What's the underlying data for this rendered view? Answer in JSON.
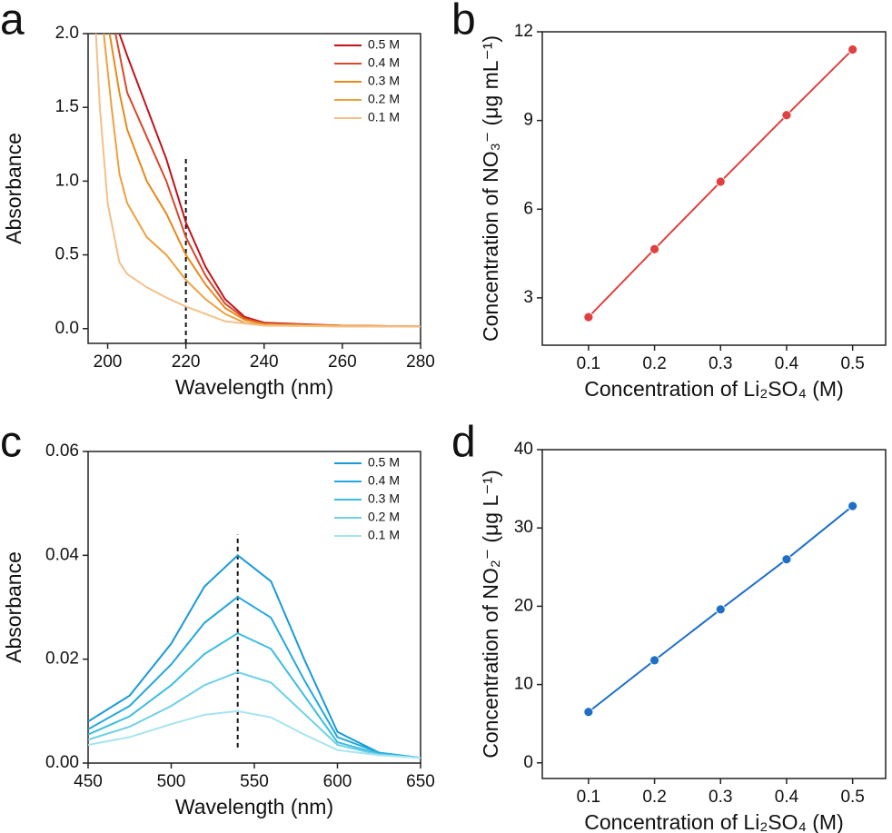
{
  "chart_data": [
    {
      "type": "line",
      "label": "a",
      "x_label": "Wavelength (nm)",
      "y_label": "Absorbance",
      "xlim": [
        195,
        280
      ],
      "ylim": [
        -0.1,
        2.0
      ],
      "xticks": [
        200,
        220,
        240,
        260,
        280
      ],
      "yticks": [
        {
          "value": 0,
          "label": "0.0"
        },
        {
          "value": 0.5,
          "label": "0.5"
        },
        {
          "value": 1,
          "label": "1.0"
        },
        {
          "value": 1.5,
          "label": "1.5"
        },
        {
          "value": 2,
          "label": "2.0"
        }
      ],
      "legend": "upper right",
      "reference_line": {
        "x": 220,
        "y": [
          -0.1,
          1.15
        ]
      },
      "series": [
        {
          "name": "0.5 M",
          "color": "#c0141c",
          "x": [
            203,
            205,
            210,
            215,
            220,
            225,
            230,
            235,
            240,
            260,
            280
          ],
          "values": [
            2.0,
            1.85,
            1.5,
            1.15,
            0.72,
            0.42,
            0.2,
            0.08,
            0.04,
            0.02,
            0.015
          ]
        },
        {
          "name": "0.4 M",
          "color": "#d9472a",
          "x": [
            202,
            205,
            210,
            215,
            220,
            225,
            230,
            235,
            240,
            260,
            280
          ],
          "values": [
            2.0,
            1.6,
            1.3,
            1.0,
            0.62,
            0.36,
            0.17,
            0.07,
            0.035,
            0.02,
            0.015
          ]
        },
        {
          "name": "0.3 M",
          "color": "#e88a1a",
          "x": [
            200.5,
            203,
            205,
            210,
            215,
            220,
            225,
            230,
            235,
            240,
            260,
            280
          ],
          "values": [
            2.0,
            1.6,
            1.35,
            1.0,
            0.78,
            0.5,
            0.3,
            0.14,
            0.06,
            0.03,
            0.02,
            0.015
          ]
        },
        {
          "name": "0.2 M",
          "color": "#eea040",
          "x": [
            199,
            201,
            203,
            205,
            210,
            215,
            220,
            225,
            230,
            235,
            240,
            260,
            280
          ],
          "values": [
            2.0,
            1.5,
            1.05,
            0.85,
            0.62,
            0.5,
            0.33,
            0.2,
            0.1,
            0.04,
            0.025,
            0.015,
            0.015
          ]
        },
        {
          "name": "0.1 M",
          "color": "#f3c08a",
          "x": [
            197,
            198,
            200,
            203,
            205,
            210,
            215,
            220,
            225,
            230,
            240,
            260,
            280
          ],
          "values": [
            2.0,
            1.5,
            0.85,
            0.45,
            0.37,
            0.28,
            0.21,
            0.15,
            0.1,
            0.05,
            0.02,
            0.015,
            0.015
          ]
        }
      ]
    },
    {
      "type": "scatter",
      "connect": true,
      "label": "b",
      "x_label": "Concentration of Li₂SO₄ (M)",
      "y_label": "Concentration of NO₃⁻ (μg mL⁻¹)",
      "xlim": [
        0.03,
        0.55
      ],
      "ylim": [
        1.4,
        12
      ],
      "xticks": [
        0.1,
        0.2,
        0.3,
        0.4,
        0.5
      ],
      "yticks": [
        3,
        6,
        9,
        12
      ],
      "series": [
        {
          "color": "#e04040",
          "x": [
            0.1,
            0.2,
            0.3,
            0.4,
            0.5
          ],
          "values": [
            2.35,
            4.65,
            6.93,
            9.18,
            11.4
          ]
        }
      ]
    },
    {
      "type": "line",
      "label": "c",
      "x_label": "Wavelength (nm)",
      "y_label": "Absorbance",
      "xlim": [
        450,
        650
      ],
      "ylim": [
        0,
        0.06
      ],
      "xticks": [
        450,
        500,
        550,
        600,
        650
      ],
      "yticks": [
        {
          "value": 0,
          "label": "0.00"
        },
        {
          "value": 0.02,
          "label": "0.02"
        },
        {
          "value": 0.04,
          "label": "0.04"
        },
        {
          "value": 0.06,
          "label": "0.06"
        }
      ],
      "legend": "upper right",
      "reference_line": {
        "x": 540,
        "y": [
          0.003,
          0.044
        ]
      },
      "series": [
        {
          "name": "0.5 M",
          "color": "#1a9ad6",
          "x": [
            450,
            475,
            500,
            520,
            540,
            560,
            580,
            600,
            625,
            650
          ],
          "values": [
            0.008,
            0.013,
            0.023,
            0.034,
            0.04,
            0.035,
            0.02,
            0.006,
            0.002,
            0.001
          ]
        },
        {
          "name": "0.4 M",
          "color": "#22a8dc",
          "x": [
            450,
            475,
            500,
            520,
            540,
            560,
            580,
            600,
            625,
            650
          ],
          "values": [
            0.0065,
            0.011,
            0.019,
            0.027,
            0.032,
            0.028,
            0.016,
            0.005,
            0.002,
            0.001
          ]
        },
        {
          "name": "0.3 M",
          "color": "#3bbde0",
          "x": [
            450,
            475,
            500,
            520,
            540,
            560,
            580,
            600,
            625,
            650
          ],
          "values": [
            0.0055,
            0.009,
            0.015,
            0.021,
            0.025,
            0.022,
            0.013,
            0.004,
            0.0018,
            0.001
          ]
        },
        {
          "name": "0.2 M",
          "color": "#6dd0e6",
          "x": [
            450,
            475,
            500,
            520,
            540,
            560,
            580,
            600,
            625,
            650
          ],
          "values": [
            0.0045,
            0.007,
            0.011,
            0.015,
            0.0175,
            0.0155,
            0.0095,
            0.0035,
            0.0016,
            0.001
          ]
        },
        {
          "name": "0.1 M",
          "color": "#a8e4ee",
          "x": [
            450,
            475,
            500,
            520,
            540,
            560,
            580,
            600,
            625,
            650
          ],
          "values": [
            0.0035,
            0.005,
            0.0075,
            0.0093,
            0.01,
            0.0088,
            0.0055,
            0.0025,
            0.0015,
            0.001
          ]
        }
      ]
    },
    {
      "type": "scatter",
      "connect": true,
      "label": "d",
      "x_label": "Concentration of Li₂SO₄ (M)",
      "y_label": "Concentration of NO₂⁻ (μg L⁻¹)",
      "xlim": [
        0.03,
        0.55
      ],
      "ylim": [
        -2,
        40
      ],
      "xticks": [
        0.1,
        0.2,
        0.3,
        0.4,
        0.5
      ],
      "yticks": [
        0,
        10,
        20,
        30,
        40
      ],
      "series": [
        {
          "color": "#1f6fc8",
          "x": [
            0.1,
            0.2,
            0.3,
            0.4,
            0.5
          ],
          "values": [
            6.5,
            13.1,
            19.6,
            26,
            32.8
          ]
        }
      ]
    }
  ]
}
